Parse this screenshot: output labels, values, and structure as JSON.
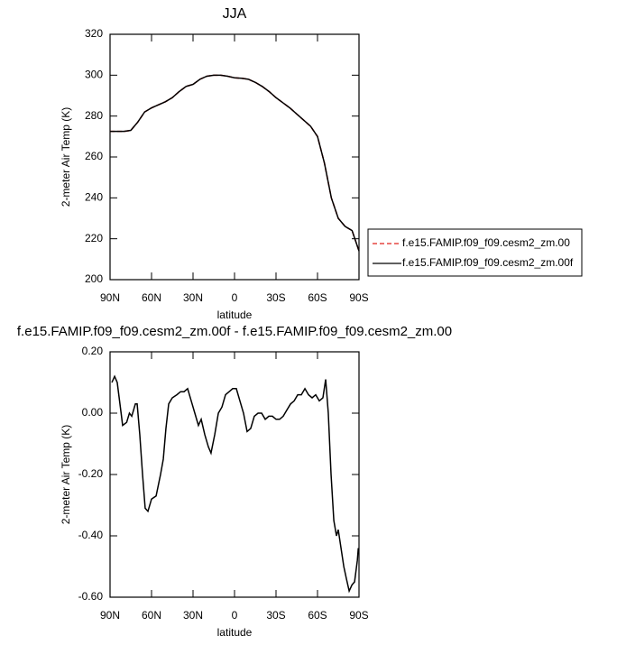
{
  "chart_data": [
    {
      "type": "line",
      "title": "JJA",
      "x_label": "latitude",
      "y_label": "2-meter Air Temp (K)",
      "x": [
        90,
        85,
        80,
        75,
        70,
        65,
        60,
        55,
        50,
        45,
        40,
        35,
        30,
        25,
        20,
        15,
        10,
        5,
        0,
        -5,
        -10,
        -15,
        -20,
        -25,
        -30,
        -35,
        -40,
        -45,
        -50,
        -55,
        -60,
        -65,
        -70,
        -75,
        -80,
        -85,
        -90
      ],
      "series": [
        {
          "name": "f.e15.FAMIP.f09_f09.cesm2_zm.00",
          "color": "#e0201b",
          "dashed": true,
          "values": [
            272.5,
            272.5,
            272.5,
            273,
            277,
            282,
            284,
            285.5,
            287,
            289,
            292,
            294.5,
            295.5,
            298,
            299.5,
            300,
            300,
            299.5,
            298.7,
            298.5,
            298,
            296.5,
            294.5,
            292,
            289,
            286.5,
            284,
            281,
            278,
            275,
            270,
            257,
            240,
            230,
            226,
            224,
            214
          ]
        },
        {
          "name": "f.e15.FAMIP.f09_f09.cesm2_zm.00f",
          "color": "#000000",
          "dashed": false,
          "values": [
            272.5,
            272.5,
            272.5,
            273,
            277,
            282,
            284,
            285.5,
            287,
            289,
            292,
            294.5,
            295.5,
            298,
            299.5,
            300,
            300,
            299.5,
            298.7,
            298.5,
            298,
            296.5,
            294.5,
            292,
            289,
            286.5,
            284,
            281,
            278,
            275,
            270,
            257,
            240,
            230,
            226,
            224,
            214
          ]
        }
      ],
      "xlim": [
        90,
        -90
      ],
      "xticks": [
        {
          "value": 90,
          "label": "90N"
        },
        {
          "value": 60,
          "label": "60N"
        },
        {
          "value": 30,
          "label": "30N"
        },
        0,
        {
          "value": -30,
          "label": "30S"
        },
        {
          "value": -60,
          "label": "60S"
        },
        {
          "value": -90,
          "label": "90S"
        }
      ],
      "ylim": [
        200,
        320
      ],
      "yticks": [
        200,
        220,
        240,
        260,
        280,
        300,
        320
      ],
      "legend": "right"
    },
    {
      "type": "line",
      "title": "f.e15.FAMIP.f09_f09.cesm2_zm.00f - f.e15.FAMIP.f09_f09.cesm2_zm.00",
      "x_label": "latitude",
      "y_label": "2-meter Air Temp (K)",
      "x": [
        88.7,
        86.7,
        84.8,
        82,
        80.9,
        78,
        76,
        74.3,
        71.7,
        70.4,
        68.5,
        66.5,
        64.6,
        62.6,
        60,
        56.7,
        53.5,
        51.5,
        49.6,
        47.6,
        45,
        41.7,
        39,
        36.5,
        33.9,
        31.3,
        28.7,
        26.1,
        24.1,
        21.5,
        18.9,
        17,
        14.3,
        11.7,
        9.1,
        6.5,
        3.9,
        1.3,
        -1.3,
        -3.9,
        -6.5,
        -9.1,
        -11.7,
        -14.3,
        -17,
        -19.6,
        -22.2,
        -24.8,
        -27.4,
        -30,
        -32.6,
        -35.2,
        -37.8,
        -40.5,
        -43.1,
        -45.7,
        -48.3,
        -50.9,
        -53.5,
        -56.1,
        -58.7,
        -61.3,
        -63.9,
        -65.9,
        -67.8,
        -69.8,
        -71.8,
        -73.7,
        -75,
        -77,
        -79,
        -80.9,
        -82.9,
        -84.9,
        -86.8,
        -88.8,
        -89.5
      ],
      "series": [
        {
          "color": "#000000",
          "dashed": false,
          "values": [
            0.1,
            0.12,
            0.1,
            0.0,
            -0.04,
            -0.03,
            0.0,
            -0.01,
            0.03,
            0.03,
            -0.07,
            -0.2,
            -0.31,
            -0.32,
            -0.28,
            -0.27,
            -0.2,
            -0.15,
            -0.05,
            0.03,
            0.05,
            0.06,
            0.07,
            0.07,
            0.08,
            0.04,
            0.0,
            -0.04,
            -0.02,
            -0.07,
            -0.11,
            -0.13,
            -0.07,
            0.0,
            0.02,
            0.06,
            0.07,
            0.08,
            0.08,
            0.04,
            0.0,
            -0.06,
            -0.05,
            -0.01,
            0.0,
            0.0,
            -0.02,
            -0.01,
            -0.01,
            -0.02,
            -0.02,
            -0.01,
            0.01,
            0.03,
            0.04,
            0.06,
            0.06,
            0.08,
            0.06,
            0.05,
            0.06,
            0.04,
            0.05,
            0.11,
            0.0,
            -0.2,
            -0.35,
            -0.4,
            -0.38,
            -0.44,
            -0.5,
            -0.54,
            -0.58,
            -0.56,
            -0.55,
            -0.48,
            -0.44
          ]
        }
      ],
      "xlim": [
        90,
        -90
      ],
      "xticks": [
        {
          "value": 90,
          "label": "90N"
        },
        {
          "value": 60,
          "label": "60N"
        },
        {
          "value": 30,
          "label": "30N"
        },
        0,
        {
          "value": -30,
          "label": "30S"
        },
        {
          "value": -60,
          "label": "60S"
        },
        {
          "value": -90,
          "label": "90S"
        }
      ],
      "ylim": [
        -0.6,
        0.2
      ],
      "yticks": [
        {
          "value": -0.6,
          "label": "-0.60"
        },
        {
          "value": -0.4,
          "label": "-0.40"
        },
        {
          "value": -0.2,
          "label": "-0.20"
        },
        {
          "value": 0,
          "label": "0.00"
        },
        {
          "value": 0.2,
          "label": "0.20"
        }
      ]
    }
  ]
}
